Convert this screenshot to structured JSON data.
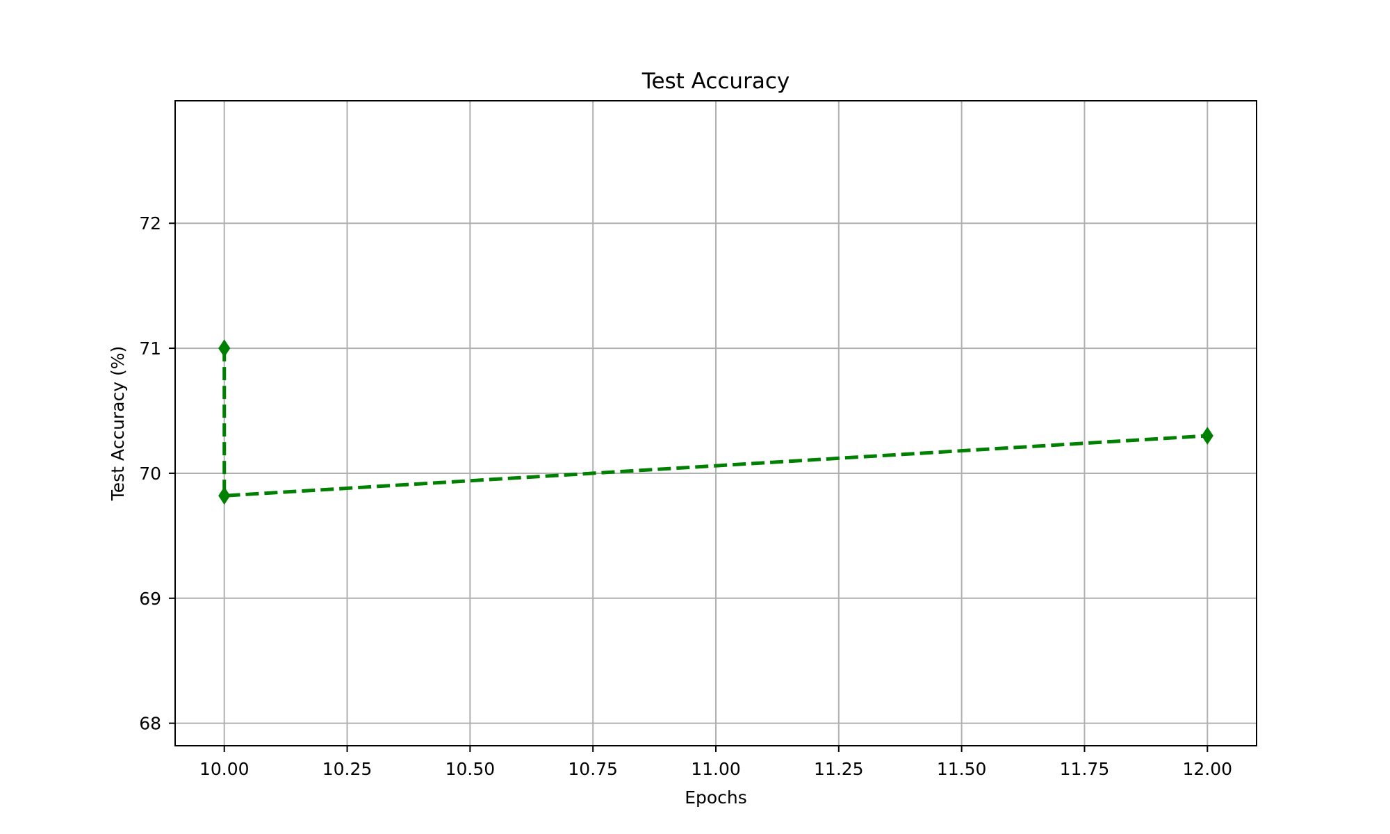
{
  "chart_data": {
    "type": "line",
    "title": "Test Accuracy",
    "xlabel": "Epochs",
    "ylabel": "Test Accuracy (%)",
    "xlim": [
      9.9,
      12.1
    ],
    "ylim": [
      67.82,
      72.98
    ],
    "xticks": [
      10.0,
      10.25,
      10.5,
      10.75,
      11.0,
      11.25,
      11.5,
      11.75,
      12.0
    ],
    "xtick_labels": [
      "10.00",
      "10.25",
      "10.50",
      "10.75",
      "11.00",
      "11.25",
      "11.50",
      "11.75",
      "12.00"
    ],
    "yticks": [
      68,
      69,
      70,
      71,
      72
    ],
    "ytick_labels": [
      "68",
      "69",
      "70",
      "71",
      "72"
    ],
    "grid": true,
    "series": [
      {
        "color": "#008000",
        "line_style": "dashed",
        "marker": "diamond",
        "x": [
          10.0,
          10.0,
          12.0
        ],
        "y": [
          71.0,
          69.82,
          70.3
        ]
      }
    ]
  }
}
